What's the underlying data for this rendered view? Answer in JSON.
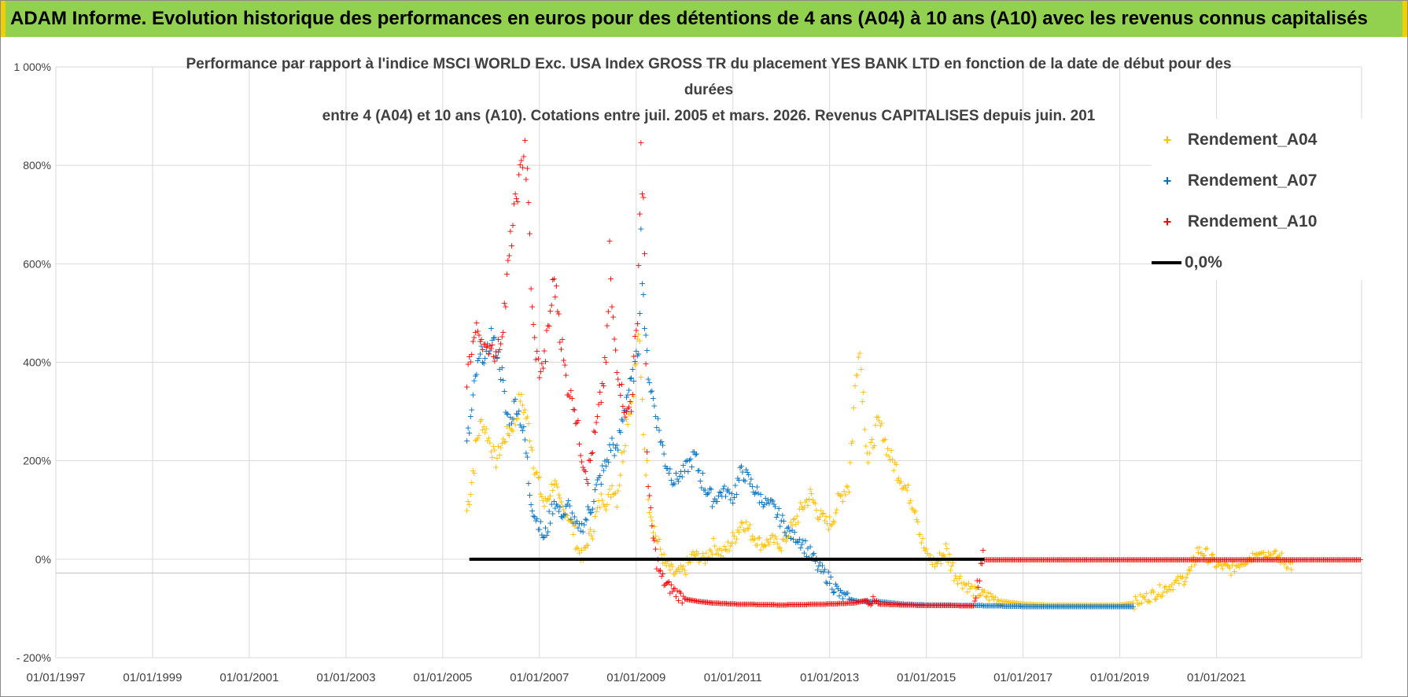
{
  "banner": "ADAM Informe. Evolution historique des performances en euros pour des détentions de 4 ans (A04) à 10 ans (A10) avec les revenus connus capitalisés",
  "colors": {
    "banner_bg": "#92d050",
    "a04": "#ffc000",
    "a07": "#0070c0",
    "a10": "#ff0000",
    "zero": "#000000",
    "grid": "#d9d9d9"
  },
  "chart_data": {
    "type": "scatter",
    "title_lines": [
      "Performance par rapport à l'indice MSCI WORLD Exc. USA Index GROSS TR  du placement YES BANK LTD en fonction de la date de début pour des",
      "durées",
      "entre 4 (A04) et 10 ans (A10). Cotations entre juil. 2005 et mars. 2026. Revenus CAPITALISES depuis juin. 201"
    ],
    "x_axis": {
      "min": 1997.0,
      "max": 2024.0,
      "ticks": [
        1997,
        1999,
        2001,
        2003,
        2005,
        2007,
        2009,
        2011,
        2013,
        2015,
        2017,
        2019,
        2021
      ],
      "tick_labels": [
        "01/01/1997",
        "01/01/1999",
        "01/01/2001",
        "01/01/2003",
        "01/01/2005",
        "01/01/2007",
        "01/01/2009",
        "01/01/2011",
        "01/01/2013",
        "01/01/2015",
        "01/01/2017",
        "01/01/2019",
        "01/01/2021"
      ]
    },
    "y_axis": {
      "min": -200,
      "max": 1000,
      "ticks": [
        -200,
        0,
        200,
        400,
        600,
        800,
        1000
      ],
      "tick_labels": [
        "- 200%",
        "0%",
        "200%",
        "400%",
        "600%",
        "800%",
        "1 000%"
      ]
    },
    "series": [
      {
        "name": "Rendement_A04",
        "marker": "+",
        "color": "#ffc000",
        "points": [
          [
            2005.5,
            100
          ],
          [
            2005.6,
            160
          ],
          [
            2005.7,
            240
          ],
          [
            2005.8,
            280
          ],
          [
            2005.9,
            260
          ],
          [
            2006.0,
            230
          ],
          [
            2006.1,
            200
          ],
          [
            2006.2,
            230
          ],
          [
            2006.3,
            250
          ],
          [
            2006.5,
            280
          ],
          [
            2006.6,
            330
          ],
          [
            2006.7,
            300
          ],
          [
            2006.8,
            260
          ],
          [
            2006.9,
            190
          ],
          [
            2007.0,
            150
          ],
          [
            2007.1,
            110
          ],
          [
            2007.2,
            130
          ],
          [
            2007.3,
            160
          ],
          [
            2007.4,
            120
          ],
          [
            2007.5,
            100
          ],
          [
            2007.6,
            90
          ],
          [
            2007.7,
            60
          ],
          [
            2007.8,
            20
          ],
          [
            2007.9,
            0
          ],
          [
            2008.0,
            40
          ],
          [
            2008.1,
            60
          ],
          [
            2008.2,
            100
          ],
          [
            2008.3,
            130
          ],
          [
            2008.4,
            110
          ],
          [
            2008.5,
            150
          ],
          [
            2008.6,
            130
          ],
          [
            2008.7,
            200
          ],
          [
            2008.8,
            280
          ],
          [
            2008.9,
            320
          ],
          [
            2009.0,
            400
          ],
          [
            2009.05,
            470
          ],
          [
            2009.1,
            350
          ],
          [
            2009.2,
            200
          ],
          [
            2009.3,
            100
          ],
          [
            2009.4,
            50
          ],
          [
            2009.5,
            20
          ],
          [
            2009.6,
            -10
          ],
          [
            2009.8,
            -30
          ],
          [
            2010.0,
            -20
          ],
          [
            2010.2,
            10
          ],
          [
            2010.4,
            0
          ],
          [
            2010.6,
            30
          ],
          [
            2010.8,
            10
          ],
          [
            2011.0,
            40
          ],
          [
            2011.2,
            80
          ],
          [
            2011.4,
            50
          ],
          [
            2011.6,
            30
          ],
          [
            2011.8,
            40
          ],
          [
            2012.0,
            30
          ],
          [
            2012.2,
            60
          ],
          [
            2012.4,
            100
          ],
          [
            2012.6,
            130
          ],
          [
            2012.8,
            90
          ],
          [
            2013.0,
            70
          ],
          [
            2013.2,
            120
          ],
          [
            2013.4,
            160
          ],
          [
            2013.5,
            300
          ],
          [
            2013.6,
            450
          ],
          [
            2013.7,
            330
          ],
          [
            2013.8,
            200
          ],
          [
            2013.9,
            240
          ],
          [
            2014.0,
            280
          ],
          [
            2014.1,
            260
          ],
          [
            2014.2,
            220
          ],
          [
            2014.4,
            180
          ],
          [
            2014.6,
            140
          ],
          [
            2014.8,
            100
          ],
          [
            2014.9,
            40
          ],
          [
            2015.0,
            10
          ],
          [
            2015.2,
            -10
          ],
          [
            2015.4,
            20
          ],
          [
            2015.6,
            -30
          ],
          [
            2015.8,
            -50
          ],
          [
            2016.0,
            -65
          ],
          [
            2016.3,
            -75
          ],
          [
            2016.6,
            -85
          ],
          [
            2017.0,
            -90
          ],
          [
            2017.5,
            -92
          ],
          [
            2018.0,
            -92
          ],
          [
            2018.5,
            -92
          ],
          [
            2019.0,
            -92
          ],
          [
            2019.3,
            -88
          ],
          [
            2019.6,
            -75
          ],
          [
            2019.9,
            -60
          ],
          [
            2020.1,
            -50
          ],
          [
            2020.3,
            -40
          ],
          [
            2020.5,
            -20
          ],
          [
            2020.6,
            20
          ],
          [
            2020.8,
            10
          ],
          [
            2021.0,
            -10
          ],
          [
            2021.3,
            -20
          ],
          [
            2021.5,
            -5
          ],
          [
            2021.8,
            10
          ],
          [
            2022.0,
            15
          ],
          [
            2022.3,
            5
          ],
          [
            2022.6,
            -15
          ]
        ]
      },
      {
        "name": "Rendement_A07",
        "marker": "+",
        "color": "#0070c0",
        "points": [
          [
            2005.5,
            230
          ],
          [
            2005.6,
            300
          ],
          [
            2005.7,
            380
          ],
          [
            2005.8,
            420
          ],
          [
            2005.9,
            400
          ],
          [
            2006.0,
            460
          ],
          [
            2006.1,
            430
          ],
          [
            2006.2,
            390
          ],
          [
            2006.3,
            300
          ],
          [
            2006.4,
            280
          ],
          [
            2006.5,
            320
          ],
          [
            2006.6,
            290
          ],
          [
            2006.7,
            240
          ],
          [
            2006.8,
            140
          ],
          [
            2006.9,
            90
          ],
          [
            2007.0,
            70
          ],
          [
            2007.1,
            40
          ],
          [
            2007.2,
            80
          ],
          [
            2007.3,
            120
          ],
          [
            2007.4,
            100
          ],
          [
            2007.5,
            90
          ],
          [
            2007.6,
            110
          ],
          [
            2007.7,
            80
          ],
          [
            2007.8,
            60
          ],
          [
            2007.9,
            70
          ],
          [
            2008.0,
            90
          ],
          [
            2008.2,
            150
          ],
          [
            2008.4,
            200
          ],
          [
            2008.5,
            240
          ],
          [
            2008.6,
            210
          ],
          [
            2008.7,
            280
          ],
          [
            2008.8,
            330
          ],
          [
            2008.9,
            360
          ],
          [
            2009.0,
            400
          ],
          [
            2009.05,
            460
          ],
          [
            2009.1,
            650
          ],
          [
            2009.15,
            540
          ],
          [
            2009.2,
            430
          ],
          [
            2009.3,
            350
          ],
          [
            2009.4,
            300
          ],
          [
            2009.5,
            250
          ],
          [
            2009.6,
            200
          ],
          [
            2009.8,
            160
          ],
          [
            2010.0,
            180
          ],
          [
            2010.2,
            210
          ],
          [
            2010.4,
            150
          ],
          [
            2010.6,
            120
          ],
          [
            2010.8,
            140
          ],
          [
            2011.0,
            130
          ],
          [
            2011.2,
            180
          ],
          [
            2011.4,
            150
          ],
          [
            2011.6,
            120
          ],
          [
            2011.8,
            110
          ],
          [
            2012.0,
            80
          ],
          [
            2012.2,
            50
          ],
          [
            2012.4,
            40
          ],
          [
            2012.6,
            10
          ],
          [
            2012.8,
            -20
          ],
          [
            2013.0,
            -40
          ],
          [
            2013.2,
            -70
          ],
          [
            2013.4,
            -80
          ],
          [
            2013.6,
            -85
          ],
          [
            2014.0,
            -85
          ],
          [
            2014.5,
            -90
          ],
          [
            2015.0,
            -92
          ],
          [
            2016.0,
            -93
          ],
          [
            2017.0,
            -95
          ],
          [
            2018.0,
            -95
          ],
          [
            2019.0,
            -95
          ],
          [
            2019.3,
            -95
          ]
        ]
      },
      {
        "name": "Rendement_A10",
        "marker": "+",
        "color": "#ff0000",
        "points": [
          [
            2005.5,
            370
          ],
          [
            2005.6,
            430
          ],
          [
            2005.7,
            470
          ],
          [
            2005.8,
            450
          ],
          [
            2005.9,
            420
          ],
          [
            2006.0,
            440
          ],
          [
            2006.1,
            410
          ],
          [
            2006.2,
            450
          ],
          [
            2006.3,
            530
          ],
          [
            2006.4,
            640
          ],
          [
            2006.5,
            720
          ],
          [
            2006.6,
            780
          ],
          [
            2006.7,
            850
          ],
          [
            2006.8,
            650
          ],
          [
            2006.85,
            500
          ],
          [
            2006.9,
            440
          ],
          [
            2007.0,
            380
          ],
          [
            2007.1,
            400
          ],
          [
            2007.2,
            480
          ],
          [
            2007.3,
            570
          ],
          [
            2007.4,
            500
          ],
          [
            2007.5,
            400
          ],
          [
            2007.6,
            340
          ],
          [
            2007.7,
            330
          ],
          [
            2007.8,
            260
          ],
          [
            2007.9,
            200
          ],
          [
            2008.0,
            170
          ],
          [
            2008.1,
            230
          ],
          [
            2008.2,
            280
          ],
          [
            2008.3,
            350
          ],
          [
            2008.4,
            420
          ],
          [
            2008.45,
            630
          ],
          [
            2008.5,
            500
          ],
          [
            2008.6,
            400
          ],
          [
            2008.7,
            340
          ],
          [
            2008.8,
            290
          ],
          [
            2008.9,
            330
          ],
          [
            2009.0,
            450
          ],
          [
            2009.05,
            600
          ],
          [
            2009.1,
            840
          ],
          [
            2009.15,
            700
          ],
          [
            2009.2,
            400
          ],
          [
            2009.25,
            150
          ],
          [
            2009.3,
            80
          ],
          [
            2009.4,
            10
          ],
          [
            2009.5,
            -30
          ],
          [
            2009.6,
            -50
          ],
          [
            2009.8,
            -65
          ],
          [
            2010.0,
            -80
          ],
          [
            2010.3,
            -85
          ],
          [
            2010.6,
            -88
          ],
          [
            2011.0,
            -90
          ],
          [
            2012.0,
            -92
          ],
          [
            2013.0,
            -90
          ],
          [
            2013.5,
            -88
          ],
          [
            2013.8,
            -82
          ],
          [
            2014.0,
            -90
          ],
          [
            2014.5,
            -92
          ],
          [
            2015.0,
            -93
          ],
          [
            2015.5,
            -93
          ],
          [
            2016.0,
            -94
          ],
          [
            2016.2,
            0
          ],
          [
            2017.0,
            0
          ],
          [
            2018.0,
            0
          ],
          [
            2019.0,
            0
          ],
          [
            2020.0,
            0
          ],
          [
            2021.0,
            0
          ],
          [
            2022.0,
            0
          ],
          [
            2023.0,
            0
          ],
          [
            2024.0,
            0
          ]
        ]
      }
    ],
    "zero_line": {
      "name": "0,0%",
      "color": "#000000",
      "from": 2005.55,
      "to": 2016.2,
      "value": 0
    },
    "legend": {
      "position": "top-right",
      "entries": [
        "Rendement_A04",
        "Rendement_A07",
        "Rendement_A10",
        "0,0%"
      ]
    }
  }
}
